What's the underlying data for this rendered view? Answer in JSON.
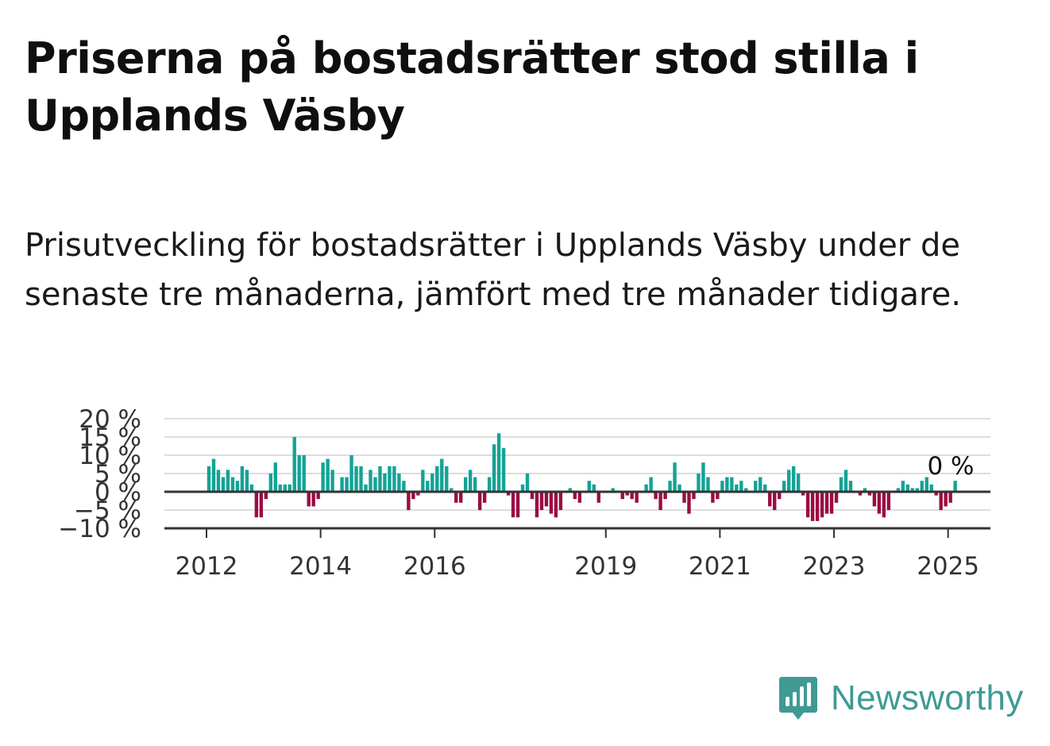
{
  "header": {
    "title": "Priserna på bostadsrätter stod stilla i Upplands Väsby",
    "subtitle": "Prisutveckling för bostadsrätter i Upplands Väsby under de senaste tre månaderna, jämfört med tre månader tidigare."
  },
  "brand": {
    "name": "Newsworthy",
    "icon": "newsworthy-logo-icon",
    "color": "#3f9a94"
  },
  "colors": {
    "positive": "#13a396",
    "negative": "#9b0c43",
    "grid": "#dddddd",
    "axis": "#333333"
  },
  "chart_data": {
    "type": "bar",
    "xlabel": "",
    "ylabel": "",
    "ylim": [
      -10,
      20
    ],
    "y_ticks": [
      20,
      15,
      10,
      5,
      0,
      -5,
      -10
    ],
    "y_tick_labels": [
      "20 %",
      "15 %",
      "10 %",
      "5 %",
      "0 %",
      "−5 %",
      "−10 %"
    ],
    "x_ticks": [
      "2012",
      "2014",
      "2016",
      "2019",
      "2021",
      "2023",
      "2025"
    ],
    "grid": true,
    "legend": "none",
    "last_label": "0 %",
    "start_period": "2012-01",
    "period": "monthly",
    "values": [
      7,
      9,
      6,
      4,
      6,
      4,
      3,
      7,
      6,
      2,
      -7,
      -7,
      -2,
      5,
      8,
      2,
      2,
      2,
      15,
      10,
      10,
      -4,
      -4,
      -2,
      8,
      9,
      6,
      0,
      4,
      4,
      10,
      7,
      7,
      2,
      6,
      4,
      7,
      5,
      7,
      7,
      5,
      3,
      -5,
      -2,
      -1,
      6,
      3,
      5,
      7,
      9,
      7,
      1,
      -3,
      -3,
      4,
      6,
      4,
      -5,
      -3,
      4,
      13,
      16,
      12,
      -1,
      -7,
      -7,
      2,
      5,
      -2,
      -7,
      -5,
      -4,
      -6,
      -7,
      -5,
      0,
      1,
      -2,
      -3,
      0,
      3,
      2,
      -3,
      0,
      0,
      1,
      0,
      -2,
      -1,
      -2,
      -3,
      0,
      2,
      4,
      -2,
      -5,
      -2,
      3,
      8,
      2,
      -3,
      -6,
      -2,
      5,
      8,
      4,
      -3,
      -2,
      3,
      4,
      4,
      2,
      3,
      1,
      0,
      3,
      4,
      2,
      -4,
      -5,
      -2,
      3,
      6,
      7,
      5,
      -1,
      -7,
      -8,
      -8,
      -7,
      -6,
      -6,
      -3,
      4,
      6,
      3,
      0,
      -1,
      1,
      -1,
      -4,
      -6,
      -7,
      -5,
      0,
      1,
      3,
      2,
      1,
      1,
      3,
      4,
      2,
      -1,
      -5,
      -4,
      -3,
      3,
      0
    ]
  }
}
